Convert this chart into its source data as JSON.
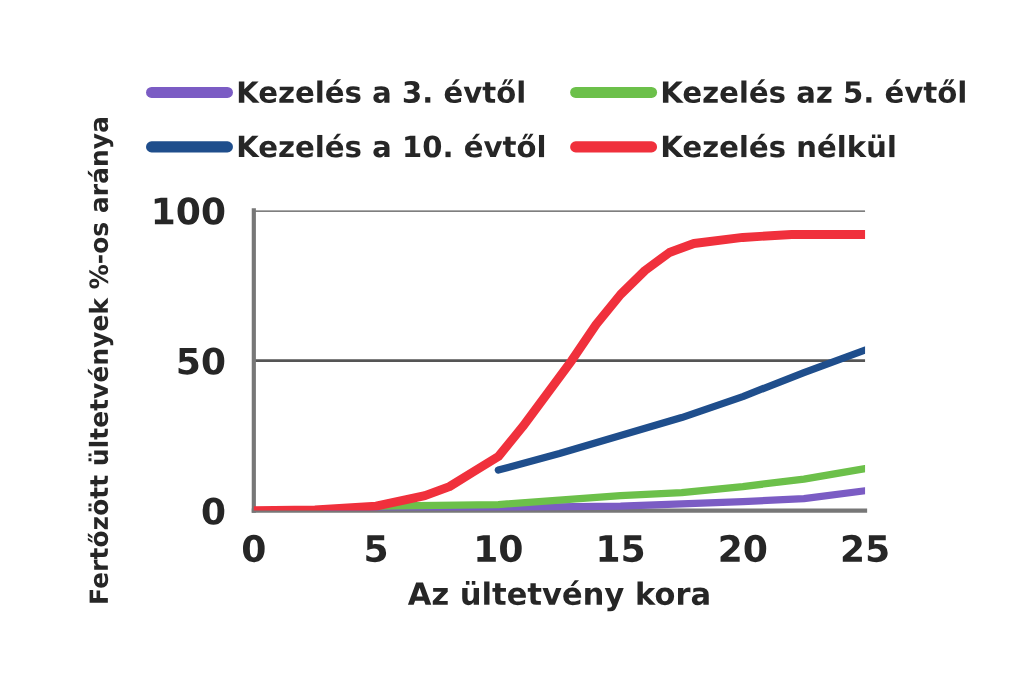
{
  "chart_data": {
    "type": "line",
    "xlabel": "Az ültetvény kora",
    "ylabel": "Fertőzött ültetvények %-os aránya",
    "xlim": [
      0,
      25
    ],
    "ylim": [
      0,
      100
    ],
    "xticks": [
      0,
      5,
      10,
      15,
      20,
      25
    ],
    "yticks": [
      0,
      50,
      100
    ],
    "grid": "y",
    "legend": "top",
    "marker": "none",
    "line_style": "solid",
    "series": [
      {
        "name": "Kezelés a 3. évtől",
        "color": "#7b5cc4",
        "x": [
          3,
          5,
          10,
          15,
          20,
          22.5,
          25
        ],
        "values": [
          0,
          0.5,
          1,
          1.5,
          3,
          4,
          6.6
        ]
      },
      {
        "name": "Kezelés az 5. évtől",
        "color": "#6cc04a",
        "x": [
          5,
          10,
          15,
          17.5,
          20,
          22.5,
          25
        ],
        "values": [
          1.5,
          2,
          5,
          6,
          8,
          10.5,
          14
        ]
      },
      {
        "name": "Kezelés a 10. évtől",
        "color": "#1f4e8c",
        "x": [
          10,
          12.5,
          15,
          17.5,
          20,
          22.5,
          25
        ],
        "values": [
          13.5,
          19,
          25,
          31,
          38,
          46,
          53.5
        ]
      },
      {
        "name": "Kezelés nélkül",
        "color": "#f0303c",
        "x": [
          0,
          2.5,
          5,
          7,
          8,
          9,
          10,
          11,
          12,
          13,
          14,
          15,
          16,
          17,
          18,
          20,
          22,
          25
        ],
        "values": [
          0,
          0.2,
          1.5,
          5,
          8,
          13,
          18,
          28,
          39,
          50,
          62,
          72,
          80,
          86,
          89,
          91,
          92,
          92
        ]
      }
    ]
  }
}
